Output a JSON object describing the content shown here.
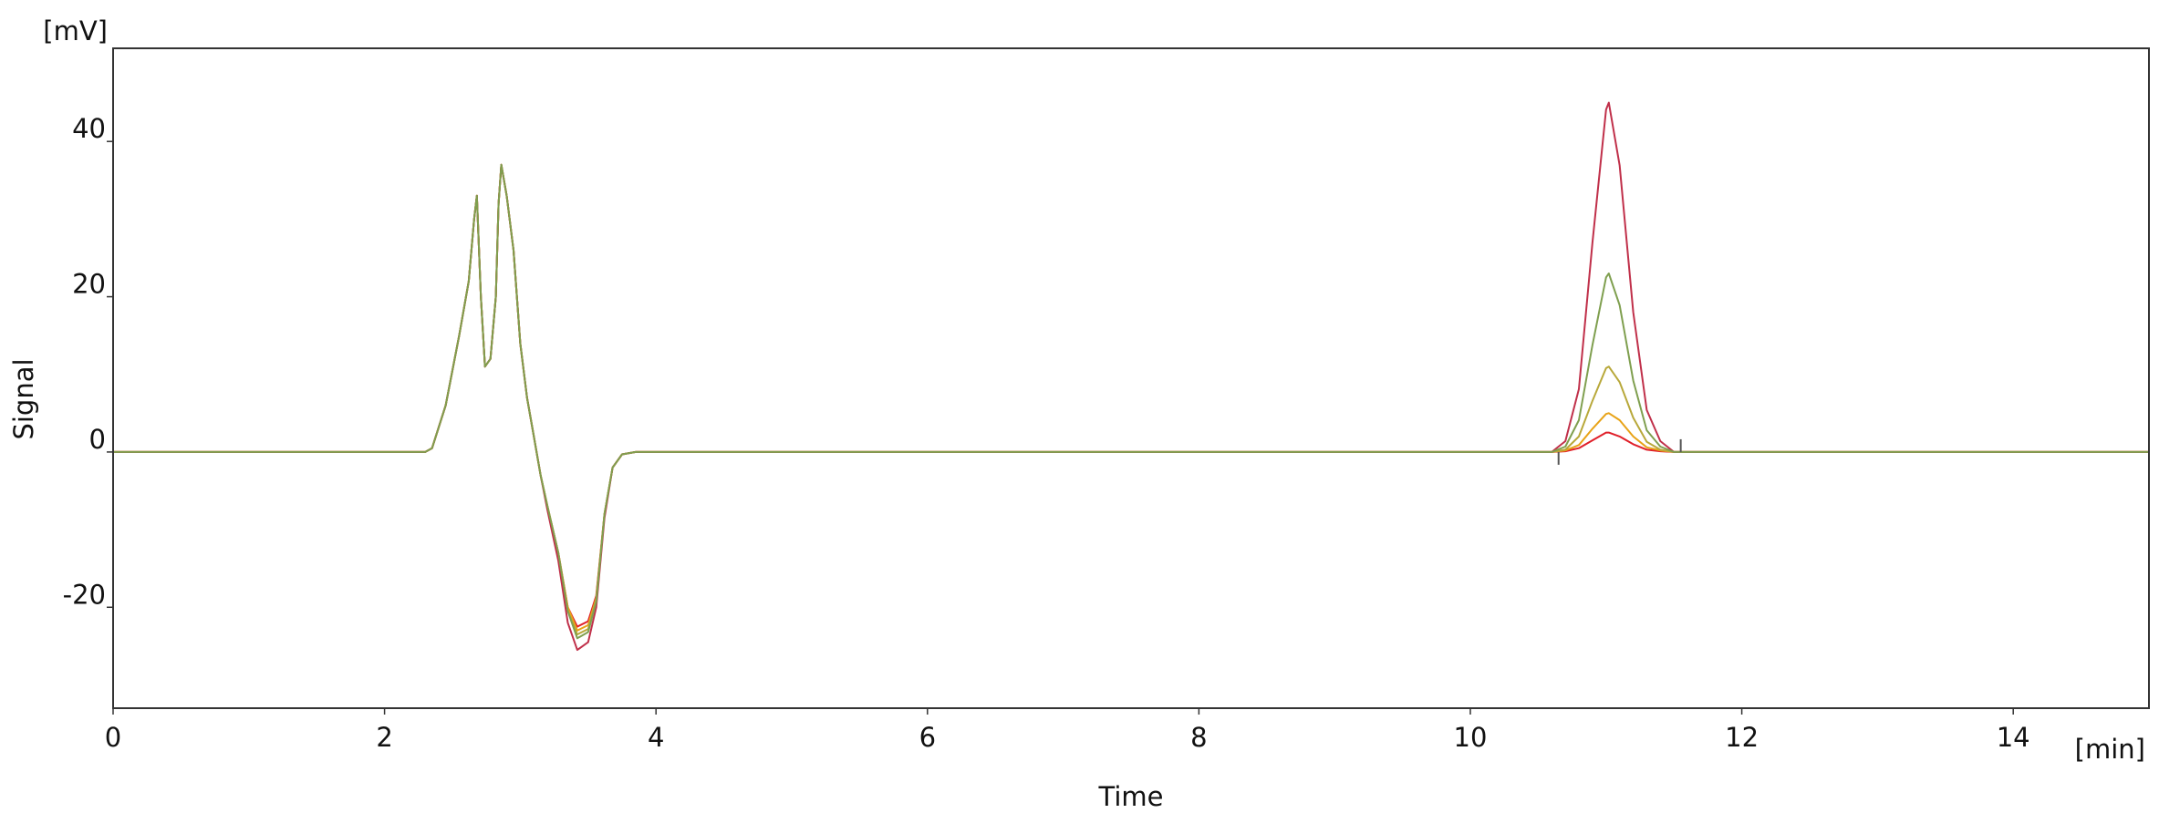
{
  "chart_data": {
    "type": "line",
    "xlabel": "Time",
    "ylabel": "Signal",
    "x_unit": "[min]",
    "y_unit": "[mV]",
    "xlim": [
      0,
      15
    ],
    "ylim": [
      -33,
      52
    ],
    "x_ticks": [
      0,
      2,
      4,
      6,
      8,
      10,
      12,
      14
    ],
    "y_ticks": [
      -20,
      0,
      20,
      40
    ],
    "grid": false,
    "legend": "none",
    "markers": [
      {
        "x": 10.65,
        "direction": "down",
        "color": "#555555"
      },
      {
        "x": 11.55,
        "direction": "up",
        "color": "#555555"
      }
    ],
    "series": [
      {
        "color": "#e0202a",
        "points": [
          [
            0,
            0
          ],
          [
            2.3,
            0
          ],
          [
            2.35,
            0.5
          ],
          [
            2.45,
            6
          ],
          [
            2.55,
            15
          ],
          [
            2.62,
            22
          ],
          [
            2.66,
            30
          ],
          [
            2.68,
            33
          ],
          [
            2.71,
            20
          ],
          [
            2.74,
            11
          ],
          [
            2.78,
            12
          ],
          [
            2.82,
            20
          ],
          [
            2.84,
            32
          ],
          [
            2.86,
            37
          ],
          [
            2.9,
            33
          ],
          [
            2.95,
            26
          ],
          [
            3.0,
            14
          ],
          [
            3.05,
            7
          ],
          [
            3.1,
            2
          ],
          [
            3.15,
            -3
          ],
          [
            3.2,
            -7
          ],
          [
            3.28,
            -13
          ],
          [
            3.35,
            -20
          ],
          [
            3.42,
            -22.5
          ],
          [
            3.5,
            -21.8
          ],
          [
            3.56,
            -18.5
          ],
          [
            3.62,
            -8
          ],
          [
            3.68,
            -2
          ],
          [
            3.75,
            -0.3
          ],
          [
            3.85,
            0
          ],
          [
            10.6,
            0
          ],
          [
            10.7,
            0.1
          ],
          [
            10.8,
            0.5
          ],
          [
            10.9,
            1.5
          ],
          [
            11.0,
            2.5
          ],
          [
            11.02,
            2.5
          ],
          [
            11.1,
            2
          ],
          [
            11.2,
            1
          ],
          [
            11.3,
            0.3
          ],
          [
            11.4,
            0.1
          ],
          [
            11.5,
            0
          ],
          [
            15,
            0
          ]
        ]
      },
      {
        "color": "#e8a317",
        "points": [
          [
            0,
            0
          ],
          [
            2.3,
            0
          ],
          [
            2.35,
            0.5
          ],
          [
            2.45,
            6
          ],
          [
            2.55,
            15
          ],
          [
            2.62,
            22
          ],
          [
            2.66,
            30
          ],
          [
            2.68,
            33
          ],
          [
            2.71,
            20
          ],
          [
            2.74,
            11
          ],
          [
            2.78,
            12
          ],
          [
            2.82,
            20
          ],
          [
            2.84,
            32
          ],
          [
            2.86,
            37
          ],
          [
            2.9,
            33
          ],
          [
            2.95,
            26
          ],
          [
            3.0,
            14
          ],
          [
            3.05,
            7
          ],
          [
            3.1,
            2
          ],
          [
            3.15,
            -3
          ],
          [
            3.2,
            -7
          ],
          [
            3.28,
            -13
          ],
          [
            3.35,
            -20
          ],
          [
            3.42,
            -23
          ],
          [
            3.5,
            -22.3
          ],
          [
            3.56,
            -18.8
          ],
          [
            3.62,
            -8
          ],
          [
            3.68,
            -2
          ],
          [
            3.75,
            -0.3
          ],
          [
            3.85,
            0
          ],
          [
            10.6,
            0
          ],
          [
            10.7,
            0.2
          ],
          [
            10.8,
            0.9
          ],
          [
            10.9,
            3
          ],
          [
            11.0,
            4.9
          ],
          [
            11.02,
            5
          ],
          [
            11.1,
            4.1
          ],
          [
            11.2,
            2
          ],
          [
            11.3,
            0.6
          ],
          [
            11.4,
            0.2
          ],
          [
            11.5,
            0
          ],
          [
            15,
            0
          ]
        ]
      },
      {
        "color": "#b8a83a",
        "points": [
          [
            0,
            0
          ],
          [
            2.3,
            0
          ],
          [
            2.35,
            0.5
          ],
          [
            2.45,
            6
          ],
          [
            2.55,
            15
          ],
          [
            2.62,
            22
          ],
          [
            2.66,
            30
          ],
          [
            2.68,
            33
          ],
          [
            2.71,
            20
          ],
          [
            2.74,
            11
          ],
          [
            2.78,
            12
          ],
          [
            2.82,
            20
          ],
          [
            2.84,
            32
          ],
          [
            2.86,
            37
          ],
          [
            2.9,
            33
          ],
          [
            2.95,
            26
          ],
          [
            3.0,
            14
          ],
          [
            3.05,
            7
          ],
          [
            3.1,
            2
          ],
          [
            3.15,
            -3
          ],
          [
            3.2,
            -7
          ],
          [
            3.28,
            -13
          ],
          [
            3.35,
            -20.5
          ],
          [
            3.42,
            -23.5
          ],
          [
            3.5,
            -22.8
          ],
          [
            3.56,
            -19
          ],
          [
            3.62,
            -8
          ],
          [
            3.68,
            -2
          ],
          [
            3.75,
            -0.3
          ],
          [
            3.85,
            0
          ],
          [
            10.6,
            0
          ],
          [
            10.7,
            0.3
          ],
          [
            10.8,
            2
          ],
          [
            10.9,
            6.6
          ],
          [
            11.0,
            10.8
          ],
          [
            11.02,
            11
          ],
          [
            11.1,
            9
          ],
          [
            11.2,
            4.4
          ],
          [
            11.3,
            1.3
          ],
          [
            11.4,
            0.3
          ],
          [
            11.5,
            0
          ],
          [
            15,
            0
          ]
        ]
      },
      {
        "color": "#c0304a",
        "points": [
          [
            0,
            0
          ],
          [
            2.3,
            0
          ],
          [
            2.35,
            0.5
          ],
          [
            2.45,
            6
          ],
          [
            2.55,
            15
          ],
          [
            2.62,
            22
          ],
          [
            2.66,
            30
          ],
          [
            2.68,
            33
          ],
          [
            2.71,
            20
          ],
          [
            2.74,
            11
          ],
          [
            2.78,
            12
          ],
          [
            2.82,
            20
          ],
          [
            2.84,
            32
          ],
          [
            2.86,
            37
          ],
          [
            2.9,
            33
          ],
          [
            2.95,
            26
          ],
          [
            3.0,
            14
          ],
          [
            3.05,
            7
          ],
          [
            3.1,
            2
          ],
          [
            3.15,
            -3
          ],
          [
            3.2,
            -7.5
          ],
          [
            3.28,
            -14
          ],
          [
            3.35,
            -22
          ],
          [
            3.42,
            -25.5
          ],
          [
            3.5,
            -24.5
          ],
          [
            3.56,
            -20
          ],
          [
            3.62,
            -8.5
          ],
          [
            3.68,
            -2
          ],
          [
            3.75,
            -0.3
          ],
          [
            3.85,
            0
          ],
          [
            10.6,
            0
          ],
          [
            10.7,
            1.4
          ],
          [
            10.8,
            8.1
          ],
          [
            10.9,
            27
          ],
          [
            11.0,
            44.1
          ],
          [
            11.02,
            45
          ],
          [
            11.1,
            36.9
          ],
          [
            11.2,
            18
          ],
          [
            11.3,
            5.4
          ],
          [
            11.4,
            1.4
          ],
          [
            11.5,
            0
          ],
          [
            15,
            0
          ]
        ]
      },
      {
        "color": "#7f9f4f",
        "points": [
          [
            0,
            0
          ],
          [
            2.3,
            0
          ],
          [
            2.35,
            0.5
          ],
          [
            2.45,
            6
          ],
          [
            2.55,
            15
          ],
          [
            2.62,
            22
          ],
          [
            2.66,
            30
          ],
          [
            2.68,
            33
          ],
          [
            2.71,
            20
          ],
          [
            2.74,
            11
          ],
          [
            2.78,
            12
          ],
          [
            2.82,
            20
          ],
          [
            2.84,
            32
          ],
          [
            2.86,
            37
          ],
          [
            2.9,
            33
          ],
          [
            2.95,
            26
          ],
          [
            3.0,
            14
          ],
          [
            3.05,
            7
          ],
          [
            3.1,
            2
          ],
          [
            3.15,
            -3
          ],
          [
            3.2,
            -7
          ],
          [
            3.28,
            -13
          ],
          [
            3.35,
            -20.5
          ],
          [
            3.42,
            -24
          ],
          [
            3.5,
            -23.2
          ],
          [
            3.56,
            -19.3
          ],
          [
            3.62,
            -8
          ],
          [
            3.68,
            -2
          ],
          [
            3.75,
            -0.3
          ],
          [
            3.85,
            0
          ],
          [
            10.6,
            0
          ],
          [
            10.7,
            0.7
          ],
          [
            10.8,
            4.1
          ],
          [
            10.9,
            13.8
          ],
          [
            11.0,
            22.5
          ],
          [
            11.02,
            23
          ],
          [
            11.1,
            18.9
          ],
          [
            11.2,
            9.2
          ],
          [
            11.3,
            2.8
          ],
          [
            11.4,
            0.7
          ],
          [
            11.5,
            0
          ],
          [
            15,
            0
          ]
        ]
      }
    ]
  }
}
